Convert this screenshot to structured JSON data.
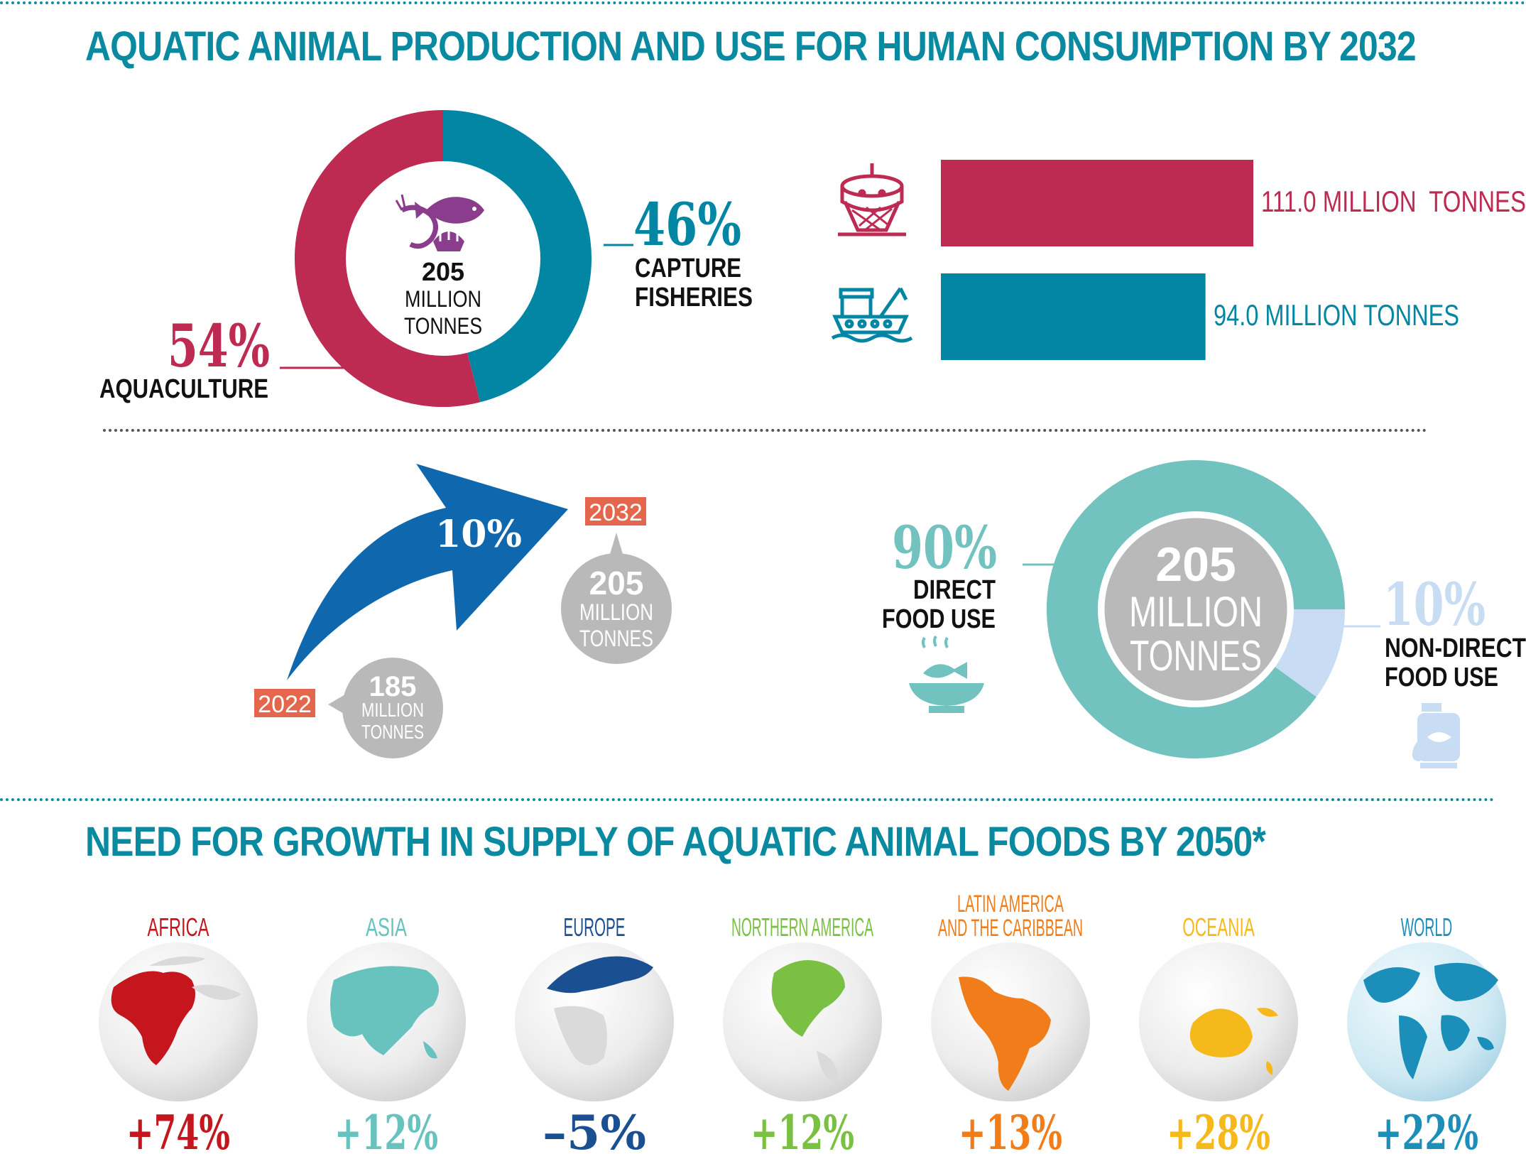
{
  "titles": {
    "top": "AQUATIC ANIMAL PRODUCTION AND USE FOR HUMAN CONSUMPTION BY 2032",
    "bottom": "NEED FOR GROWTH IN SUPPLY OF AQUATIC ANIMAL FOODS BY 2050*"
  },
  "colors": {
    "aquaculture": "#bd2a52",
    "capture": "#0386a4",
    "direct": "#72c2bf",
    "nondirect": "#c8dcf4",
    "arrow": "#0f68ad",
    "year": "#e4664c",
    "bubble": "#b9b9b9",
    "heading": "#0a8aa0"
  },
  "chart_data": [
    {
      "type": "pie",
      "center": {
        "value": "205",
        "line1": "MILLION",
        "line2": "TONNES"
      },
      "slices": [
        {
          "value": 54,
          "pct": "54%",
          "label": "AQUACULTURE",
          "color": "#bd2a52"
        },
        {
          "value": 46,
          "pct": "46%",
          "label_line1": "CAPTURE",
          "label_line2": "FISHERIES",
          "color": "#0386a4"
        }
      ]
    },
    {
      "type": "bar",
      "orientation": "horizontal",
      "series": [
        {
          "value": 111.0,
          "label": "111.0 MILLION  TONNES",
          "color": "#bd2a52",
          "icon": "aquaculture-cage-icon"
        },
        {
          "value": 94.0,
          "label": "94.0 MILLION TONNES",
          "color": "#0386a4",
          "icon": "fishing-vessel-icon"
        }
      ]
    },
    {
      "type": "line",
      "growth": "10%",
      "points": [
        {
          "year": "2022",
          "value": "185",
          "line1": "MILLION",
          "line2": "TONNES"
        },
        {
          "year": "2032",
          "value": "205",
          "line1": "MILLION",
          "line2": "TONNES"
        }
      ]
    },
    {
      "type": "pie",
      "center": {
        "value": "205",
        "line1": "MILLION",
        "line2": "TONNES"
      },
      "slices": [
        {
          "value": 90,
          "pct": "90%",
          "label_line1": "DIRECT",
          "label_line2": "FOOD USE",
          "color": "#72c2bf",
          "icon": "fish-bowl-icon"
        },
        {
          "value": 10,
          "pct": "10%",
          "label_line1": "NON-DIRECT",
          "label_line2": "FOOD USE",
          "color": "#c8dcf4",
          "icon": "fish-oil-bottle-icon"
        }
      ]
    },
    {
      "type": "table",
      "regions": [
        {
          "name": "AFRICA",
          "value": "+74%",
          "color": "#c4161c"
        },
        {
          "name": "ASIA",
          "value": "+12%",
          "color": "#68c3be"
        },
        {
          "name": "EUROPE",
          "value": "–5%",
          "color": "#1a4f91"
        },
        {
          "name": "NORTHERN AMERICA",
          "value": "+12%",
          "color": "#7ac143"
        },
        {
          "name_line1": "LATIN AMERICA",
          "name_line2": "AND THE CARIBBEAN",
          "value": "+13%",
          "color": "#f07d1a"
        },
        {
          "name": "OCEANIA",
          "value": "+28%",
          "color": "#f6b91c"
        },
        {
          "name": "WORLD",
          "value": "+22%",
          "color": "#1b8fb9"
        }
      ]
    }
  ]
}
